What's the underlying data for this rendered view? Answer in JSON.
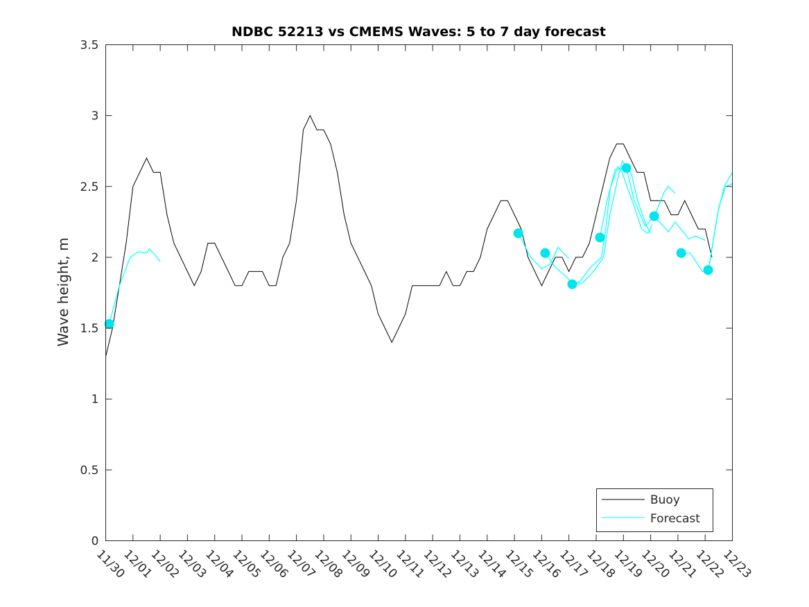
{
  "chart_data": {
    "type": "line",
    "title": "NDBC 52213 vs CMEMS Waves: 5 to 7 day forecast",
    "xlabel": "",
    "ylabel": "Wave height, m",
    "ylim": [
      0,
      3.5
    ],
    "xlim_days": [
      0,
      23
    ],
    "y_ticks": [
      "0",
      "0.5",
      "1",
      "1.5",
      "2",
      "2.5",
      "3",
      "3.5"
    ],
    "x_ticks": [
      "11/30",
      "12/01",
      "12/02",
      "12/03",
      "12/04",
      "12/05",
      "12/06",
      "12/07",
      "12/08",
      "12/09",
      "12/10",
      "12/11",
      "12/12",
      "12/13",
      "12/14",
      "12/15",
      "12/16",
      "12/17",
      "12/18",
      "12/19",
      "12/20",
      "12/21",
      "12/22",
      "12/23"
    ],
    "legend": {
      "position": "bottom-right",
      "entries": [
        "Buoy",
        "Forecast"
      ]
    },
    "colors": {
      "buoy": "#000000",
      "forecast": "#00ffff",
      "marker": "#00e5ee"
    },
    "buoy": {
      "x_step_days": 0.25,
      "values": [
        1.3,
        1.5,
        1.8,
        2.1,
        2.5,
        2.6,
        2.7,
        2.6,
        2.6,
        2.3,
        2.1,
        2.0,
        1.9,
        1.8,
        1.9,
        2.1,
        2.1,
        2.0,
        1.9,
        1.8,
        1.8,
        1.9,
        1.9,
        1.9,
        1.8,
        1.8,
        2.0,
        2.1,
        2.4,
        2.9,
        3.0,
        2.9,
        2.9,
        2.8,
        2.6,
        2.3,
        2.1,
        2.0,
        1.9,
        1.8,
        1.6,
        1.5,
        1.4,
        1.5,
        1.6,
        1.8,
        1.8,
        1.8,
        1.8,
        1.8,
        1.9,
        1.8,
        1.8,
        1.9,
        1.9,
        2.0,
        2.2,
        2.3,
        2.4,
        2.4,
        2.3,
        2.2,
        2.0,
        1.9,
        1.8,
        1.9,
        2.0,
        2.0,
        1.9,
        2.0,
        2.0,
        2.1,
        2.3,
        2.5,
        2.7,
        2.8,
        2.8,
        2.7,
        2.6,
        2.6,
        2.4,
        2.4,
        2.4,
        2.3,
        2.3,
        2.4,
        2.3,
        2.2,
        2.2,
        2.0
      ]
    },
    "forecast_segments": [
      [
        [
          0.13,
          1.53
        ],
        [
          0.5,
          1.8
        ],
        [
          0.9,
          2.0
        ],
        [
          1.2,
          2.04
        ],
        [
          1.5,
          2.03
        ],
        [
          1.6,
          2.06
        ],
        [
          1.8,
          2.02
        ],
        [
          2.0,
          1.97
        ]
      ],
      [
        [
          15.14,
          2.17
        ],
        [
          15.6,
          2.0
        ],
        [
          16.0,
          1.92
        ],
        [
          16.3,
          1.95
        ],
        [
          16.6,
          2.07
        ],
        [
          17.0,
          1.99
        ]
      ],
      [
        [
          16.13,
          2.03
        ],
        [
          16.5,
          1.93
        ],
        [
          16.92,
          1.86
        ],
        [
          17.12,
          1.81
        ],
        [
          17.5,
          1.82
        ],
        [
          17.9,
          1.9
        ],
        [
          18.27,
          2.0
        ],
        [
          18.5,
          2.3
        ],
        [
          18.8,
          2.56
        ],
        [
          18.96,
          2.68
        ],
        [
          19.29,
          2.59
        ],
        [
          19.54,
          2.39
        ],
        [
          19.85,
          2.22
        ],
        [
          20.0,
          2.17
        ]
      ],
      [
        [
          17.12,
          1.81
        ],
        [
          17.4,
          1.83
        ],
        [
          17.8,
          1.93
        ],
        [
          18.2,
          2.0
        ],
        [
          18.35,
          2.2
        ],
        [
          18.52,
          2.49
        ],
        [
          18.8,
          2.64
        ],
        [
          18.95,
          2.6
        ],
        [
          19.34,
          2.39
        ],
        [
          19.67,
          2.2
        ],
        [
          19.9,
          2.17
        ],
        [
          20.05,
          2.23
        ]
      ],
      [
        [
          18.14,
          2.14
        ],
        [
          18.4,
          2.4
        ],
        [
          18.7,
          2.62
        ],
        [
          19.11,
          2.63
        ],
        [
          19.4,
          2.4
        ],
        [
          19.8,
          2.22
        ],
        [
          20.13,
          2.29
        ],
        [
          20.5,
          2.46
        ],
        [
          20.65,
          2.5
        ],
        [
          20.9,
          2.45
        ]
      ],
      [
        [
          20.13,
          2.29
        ],
        [
          20.66,
          2.18
        ],
        [
          20.9,
          2.25
        ],
        [
          21.4,
          2.13
        ],
        [
          21.64,
          2.15
        ],
        [
          22.0,
          2.12
        ]
      ],
      [
        [
          21.12,
          2.03
        ],
        [
          21.45,
          2.03
        ],
        [
          21.7,
          1.96
        ],
        [
          21.9,
          1.9
        ],
        [
          22.11,
          1.9
        ],
        [
          22.45,
          2.3
        ],
        [
          22.7,
          2.5
        ],
        [
          23.0,
          2.6
        ]
      ],
      [
        [
          22.1,
          1.88
        ],
        [
          22.5,
          2.35
        ],
        [
          22.75,
          2.5
        ],
        [
          23.0,
          2.52
        ]
      ]
    ],
    "forecast_markers": [
      [
        0.13,
        1.53
      ],
      [
        15.14,
        2.17
      ],
      [
        16.13,
        2.03
      ],
      [
        17.12,
        1.81
      ],
      [
        18.14,
        2.14
      ],
      [
        19.11,
        2.63
      ],
      [
        20.13,
        2.29
      ],
      [
        21.12,
        2.03
      ],
      [
        22.11,
        1.91
      ]
    ]
  }
}
